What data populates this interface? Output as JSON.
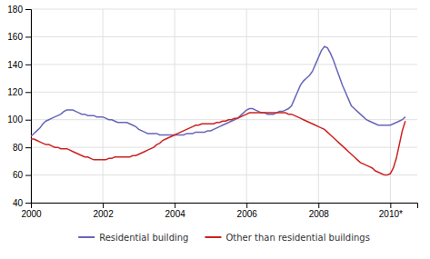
{
  "chart_data": {
    "type": "line",
    "x": [
      2000.0,
      2000.083,
      2000.167,
      2000.25,
      2000.333,
      2000.417,
      2000.5,
      2000.583,
      2000.667,
      2000.75,
      2000.833,
      2000.917,
      2001.0,
      2001.083,
      2001.167,
      2001.25,
      2001.333,
      2001.417,
      2001.5,
      2001.583,
      2001.667,
      2001.75,
      2001.833,
      2001.917,
      2002.0,
      2002.083,
      2002.167,
      2002.25,
      2002.333,
      2002.417,
      2002.5,
      2002.583,
      2002.667,
      2002.75,
      2002.833,
      2002.917,
      2003.0,
      2003.083,
      2003.167,
      2003.25,
      2003.333,
      2003.417,
      2003.5,
      2003.583,
      2003.667,
      2003.75,
      2003.833,
      2003.917,
      2004.0,
      2004.083,
      2004.167,
      2004.25,
      2004.333,
      2004.417,
      2004.5,
      2004.583,
      2004.667,
      2004.75,
      2004.833,
      2004.917,
      2005.0,
      2005.083,
      2005.167,
      2005.25,
      2005.333,
      2005.417,
      2005.5,
      2005.583,
      2005.667,
      2005.75,
      2005.833,
      2005.917,
      2006.0,
      2006.083,
      2006.167,
      2006.25,
      2006.333,
      2006.417,
      2006.5,
      2006.583,
      2006.667,
      2006.75,
      2006.833,
      2006.917,
      2007.0,
      2007.083,
      2007.167,
      2007.25,
      2007.333,
      2007.417,
      2007.5,
      2007.583,
      2007.667,
      2007.75,
      2007.833,
      2007.917,
      2008.0,
      2008.083,
      2008.167,
      2008.25,
      2008.333,
      2008.417,
      2008.5,
      2008.583,
      2008.667,
      2008.75,
      2008.833,
      2008.917,
      2009.0,
      2009.083,
      2009.167,
      2009.25,
      2009.333,
      2009.417,
      2009.5,
      2009.583,
      2009.667,
      2009.75,
      2009.833,
      2009.917,
      2010.0,
      2010.083,
      2010.167,
      2010.25,
      2010.333,
      2010.417
    ],
    "series": [
      {
        "name": "Residential building",
        "color": "#6666bb",
        "values": [
          88,
          90,
          92,
          94,
          97,
          99,
          100,
          101,
          102,
          103,
          104,
          106,
          107,
          107,
          107,
          106,
          105,
          104,
          104,
          103,
          103,
          103,
          102,
          102,
          102,
          101,
          100,
          100,
          99,
          98,
          98,
          98,
          98,
          97,
          96,
          95,
          93,
          92,
          91,
          90,
          90,
          90,
          90,
          89,
          89,
          89,
          89,
          89,
          89,
          89,
          89,
          89,
          90,
          90,
          90,
          91,
          91,
          91,
          91,
          92,
          92,
          93,
          94,
          95,
          96,
          97,
          98,
          99,
          100,
          101,
          103,
          105,
          107,
          108,
          108,
          107,
          106,
          105,
          105,
          104,
          104,
          104,
          105,
          106,
          106,
          107,
          108,
          110,
          115,
          120,
          125,
          128,
          130,
          132,
          135,
          140,
          145,
          150,
          153,
          152,
          148,
          143,
          137,
          131,
          125,
          120,
          115,
          110,
          108,
          106,
          104,
          102,
          100,
          99,
          98,
          97,
          96,
          96,
          96,
          96,
          96,
          97,
          98,
          99,
          100,
          102
        ]
      },
      {
        "name": "Other than residential buildings",
        "color": "#cc2222",
        "values": [
          86,
          86,
          85,
          84,
          83,
          82,
          82,
          81,
          80,
          80,
          79,
          79,
          79,
          78,
          77,
          76,
          75,
          74,
          73,
          73,
          72,
          71,
          71,
          71,
          71,
          71,
          72,
          72,
          73,
          73,
          73,
          73,
          73,
          73,
          74,
          74,
          75,
          76,
          77,
          78,
          79,
          80,
          82,
          83,
          85,
          86,
          87,
          88,
          89,
          90,
          91,
          92,
          93,
          94,
          95,
          96,
          96,
          97,
          97,
          97,
          97,
          97,
          98,
          98,
          99,
          99,
          100,
          100,
          101,
          101,
          102,
          103,
          104,
          105,
          105,
          105,
          105,
          105,
          105,
          105,
          105,
          105,
          105,
          105,
          105,
          105,
          104,
          104,
          103,
          102,
          101,
          100,
          99,
          98,
          97,
          96,
          95,
          94,
          93,
          91,
          89,
          87,
          85,
          83,
          81,
          79,
          77,
          75,
          73,
          71,
          69,
          68,
          67,
          66,
          65,
          63,
          62,
          61,
          60,
          60,
          61,
          65,
          72,
          82,
          92,
          99
        ]
      }
    ],
    "xlim": [
      2000,
      2010.75
    ],
    "xticks": [
      2000,
      2002,
      2004,
      2006,
      2008,
      {
        "value": 2010,
        "label": "2010*"
      }
    ],
    "ylim": [
      40,
      180
    ],
    "yticks": [
      40,
      60,
      80,
      100,
      120,
      140,
      160,
      180
    ],
    "grid": true,
    "legend": "bottom"
  }
}
